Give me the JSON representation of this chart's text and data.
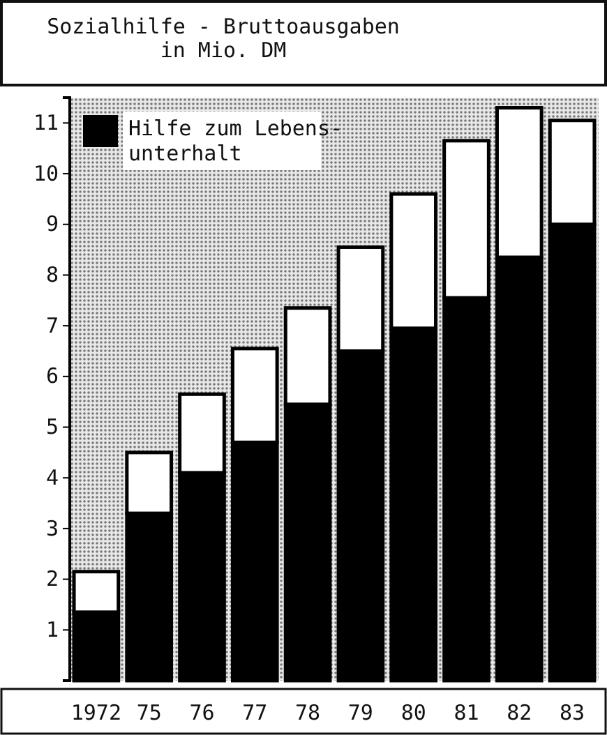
{
  "chart_data": {
    "type": "bar",
    "title": "Sozialhilfe - Bruttoausgaben\nin Mio. DM",
    "categories": [
      "1972",
      "75",
      "76",
      "77",
      "78",
      "79",
      "80",
      "81",
      "82",
      "83"
    ],
    "stacked": true,
    "series": [
      {
        "name": "Hilfe zum Lebens-\nunterhalt",
        "color": "#000000",
        "values": [
          1.35,
          3.3,
          4.1,
          4.7,
          5.45,
          6.5,
          6.95,
          7.55,
          8.35,
          9.0
        ]
      },
      {
        "color": "#ffffff",
        "values": [
          0.8,
          1.2,
          1.55,
          1.85,
          1.9,
          2.05,
          2.65,
          3.1,
          2.95,
          2.05
        ]
      }
    ],
    "ylim": [
      0,
      11.5
    ],
    "yticks": [
      1,
      2,
      3,
      4,
      5,
      6,
      7,
      8,
      9,
      10,
      11
    ],
    "legend": "top left"
  }
}
